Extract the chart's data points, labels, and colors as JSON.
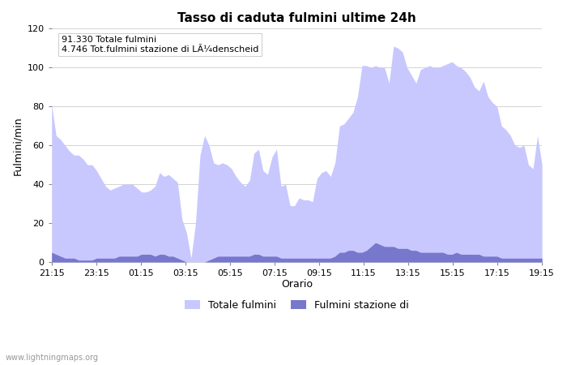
{
  "title": "Tasso di caduta fulmini ultime 24h",
  "xlabel": "Orario",
  "ylabel": "Fulmini/min",
  "ylim": [
    0,
    120
  ],
  "yticks": [
    0,
    20,
    40,
    60,
    80,
    100,
    120
  ],
  "xtick_labels": [
    "21:15",
    "23:15",
    "01:15",
    "03:15",
    "05:15",
    "07:15",
    "09:15",
    "11:15",
    "13:15",
    "15:15",
    "17:15",
    "19:15"
  ],
  "annotation_line1": "91.330 Totale fulmini",
  "annotation_line2": "4.746 Tot.fulmini stazione di LÃ¼denscheid",
  "legend_labels": [
    "Totale fulmini",
    "Fulmini stazione di"
  ],
  "color_total": "#c8c8ff",
  "color_station": "#7777cc",
  "background_color": "#ffffff",
  "watermark": "www.lightningmaps.org",
  "total_y": [
    81,
    65,
    63,
    60,
    57,
    55,
    55,
    53,
    50,
    50,
    47,
    43,
    39,
    37,
    38,
    39,
    40,
    40,
    40,
    38,
    36,
    36,
    37,
    39,
    46,
    44,
    45,
    43,
    41,
    22,
    15,
    2,
    20,
    55,
    65,
    60,
    51,
    50,
    51,
    50,
    48,
    44,
    41,
    39,
    42,
    56,
    58,
    47,
    45,
    54,
    58,
    39,
    40,
    29,
    29,
    33,
    32,
    32,
    31,
    43,
    46,
    47,
    44,
    51,
    70,
    71,
    74,
    77,
    85,
    101,
    101,
    100,
    101,
    100,
    100,
    92,
    111,
    110,
    108,
    100,
    96,
    92,
    99,
    100,
    101,
    100,
    100,
    101,
    102,
    103,
    101,
    100,
    98,
    95,
    90,
    88,
    93,
    85,
    82,
    80,
    70,
    68,
    65,
    60,
    59,
    60,
    50,
    48,
    65,
    50
  ],
  "station_y": [
    5,
    4,
    3,
    2,
    2,
    2,
    1,
    1,
    1,
    1,
    2,
    2,
    2,
    2,
    2,
    3,
    3,
    3,
    3,
    3,
    4,
    4,
    4,
    3,
    4,
    4,
    3,
    3,
    2,
    1,
    0,
    0,
    0,
    0,
    0,
    1,
    2,
    3,
    3,
    3,
    3,
    3,
    3,
    3,
    3,
    4,
    4,
    3,
    3,
    3,
    3,
    2,
    2,
    2,
    2,
    2,
    2,
    2,
    2,
    2,
    2,
    2,
    2,
    3,
    5,
    5,
    6,
    6,
    5,
    5,
    6,
    8,
    10,
    9,
    8,
    8,
    8,
    7,
    7,
    7,
    6,
    6,
    5,
    5,
    5,
    5,
    5,
    5,
    4,
    4,
    5,
    4,
    4,
    4,
    4,
    4,
    3,
    3,
    3,
    3,
    2,
    2,
    2,
    2,
    2,
    2,
    2,
    2,
    2,
    2
  ]
}
